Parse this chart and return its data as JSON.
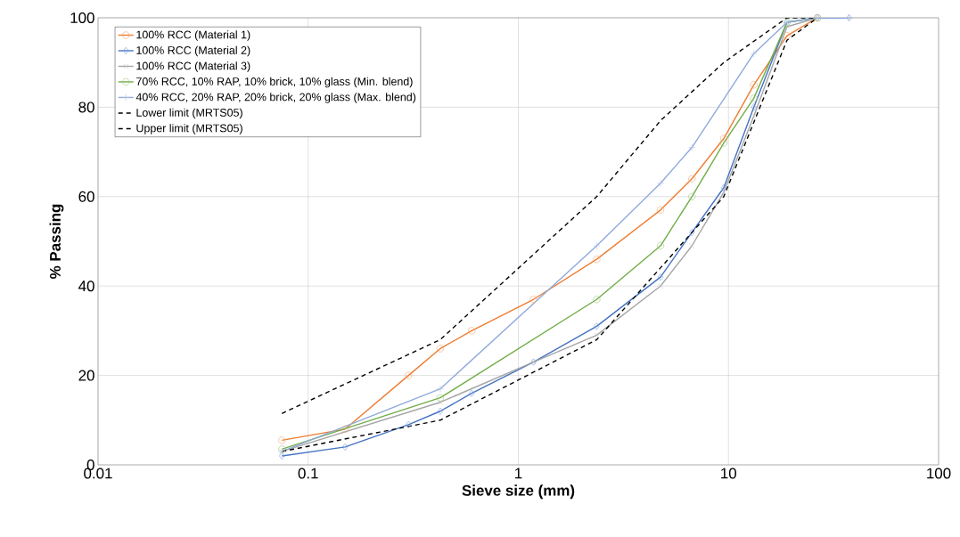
{
  "chart_data": {
    "type": "line",
    "xlabel": "Sieve size (mm)",
    "ylabel": "% Passing",
    "log": "x",
    "xlim": [
      0.01,
      100
    ],
    "ylim": [
      0,
      100
    ],
    "xticks": [
      {
        "value": 0.01,
        "label": "0.01"
      },
      {
        "value": 0.1,
        "label": "0.1"
      },
      {
        "value": 1,
        "label": "1"
      },
      {
        "value": 10,
        "label": "10"
      },
      {
        "value": 100,
        "label": "100"
      }
    ],
    "yticks": [
      0,
      20,
      40,
      60,
      80,
      100
    ],
    "grid": true,
    "legend": "top left",
    "line_style": "solid",
    "series": [
      {
        "name": "100% RCC (Material 1)",
        "color": "#ed7d31",
        "marker": "circle",
        "x": [
          0.075,
          0.15,
          0.3,
          0.425,
          0.6,
          1.18,
          2.36,
          4.75,
          6.7,
          9.5,
          13.2,
          19,
          26.5
        ],
        "values": [
          5.5,
          8,
          20,
          26,
          30,
          37,
          46,
          57,
          64,
          73,
          85,
          96,
          100
        ]
      },
      {
        "name": "100% RCC (Material 2)",
        "color": "#4472c4",
        "marker": "diamond",
        "x": [
          0.075,
          0.15,
          0.3,
          0.425,
          0.6,
          1.18,
          2.36,
          4.75,
          6.7,
          9.5,
          13.2,
          19,
          26.5,
          37.5
        ],
        "values": [
          2,
          4,
          9,
          12,
          16,
          23,
          31,
          42,
          52,
          62,
          80,
          99,
          100,
          100
        ]
      },
      {
        "name": "100% RCC (Material 3)",
        "color": "#a5a5a5",
        "marker": "cross",
        "x": [
          0.075,
          0.425,
          1.18,
          2.36,
          4.75,
          6.7,
          9.5,
          13.2,
          19,
          26.5
        ],
        "values": [
          3,
          14,
          23,
          29,
          40,
          49,
          61,
          78,
          98,
          100
        ]
      },
      {
        "name": "70% RCC, 10% RAP, 10% brick, 10% glass (Min. blend)",
        "color": "#70ad47",
        "marker": "circle",
        "x": [
          0.075,
          0.425,
          2.36,
          4.75,
          6.7,
          9.5,
          13.2,
          19,
          26.5
        ],
        "values": [
          3.5,
          15,
          37,
          49,
          60,
          72,
          82,
          99,
          100
        ]
      },
      {
        "name": "40% RCC, 20% RAP, 20% brick, 20% glass (Max. blend)",
        "color": "#8faadc",
        "marker": "plus",
        "x": [
          0.075,
          0.425,
          2.36,
          4.75,
          6.7,
          13.2,
          19,
          26.5,
          37.5
        ],
        "values": [
          3,
          17,
          49,
          63,
          71,
          92,
          99,
          100,
          100
        ]
      },
      {
        "name": "Lower limit (MRTS05)",
        "color": "#000000",
        "marker": "none",
        "line_style": "dashed",
        "x": [
          0.075,
          0.425,
          2.36,
          9.5,
          19,
          26.5
        ],
        "values": [
          3,
          10,
          28,
          60,
          95,
          100
        ]
      },
      {
        "name": "Upper limit (MRTS05)",
        "color": "#000000",
        "marker": "none",
        "line_style": "dashed",
        "x": [
          0.075,
          0.425,
          2.36,
          4.75,
          9.5,
          19,
          26.5
        ],
        "values": [
          11.5,
          28,
          60,
          77,
          90,
          100,
          100
        ]
      }
    ]
  }
}
